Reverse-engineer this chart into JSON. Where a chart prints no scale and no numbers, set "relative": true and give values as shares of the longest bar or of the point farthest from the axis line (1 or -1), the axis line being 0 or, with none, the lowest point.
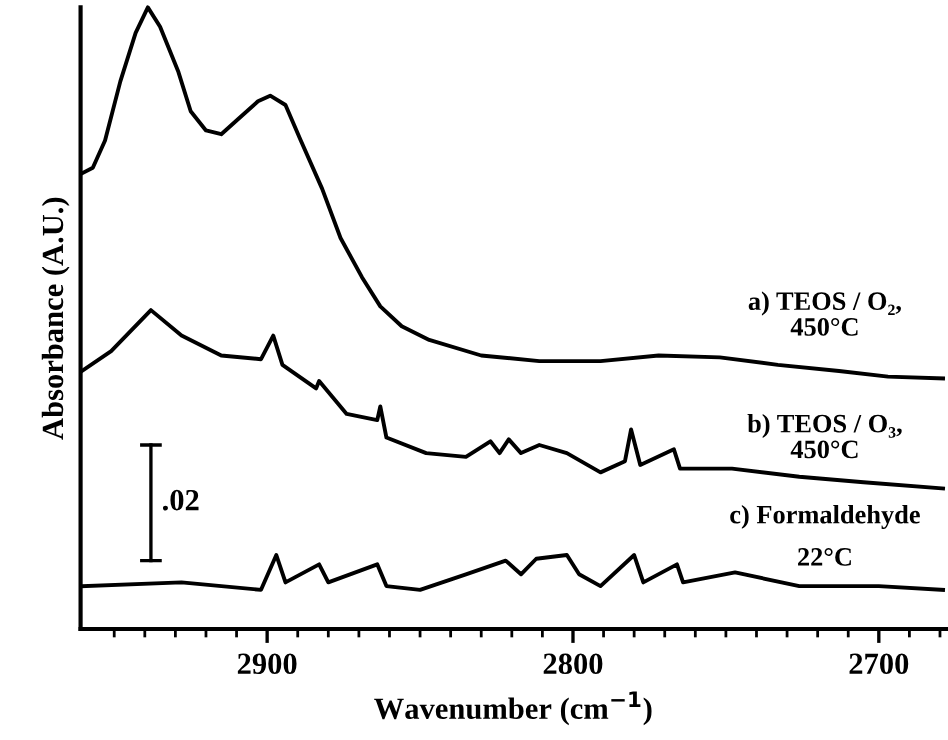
{
  "chart_data": {
    "type": "line",
    "relative": true,
    "xlabel": "Wavenumber (cm$^{−1}$)",
    "ylabel": "Absorbance (A.U.)",
    "xlim": [
      2961,
      2678
    ],
    "xticks": [
      {
        "value": 2950,
        "label": null
      },
      {
        "value": 2940,
        "label": null
      },
      {
        "value": 2930,
        "label": null
      },
      {
        "value": 2920,
        "label": null
      },
      {
        "value": 2910,
        "label": null
      },
      2900,
      {
        "value": 2890,
        "label": null
      },
      {
        "value": 2880,
        "label": null
      },
      {
        "value": 2870,
        "label": null
      },
      {
        "value": 2860,
        "label": null
      },
      {
        "value": 2850,
        "label": null
      },
      {
        "value": 2840,
        "label": null
      },
      {
        "value": 2830,
        "label": null
      },
      {
        "value": 2820,
        "label": null
      },
      {
        "value": 2810,
        "label": null
      },
      2800,
      {
        "value": 2790,
        "label": null
      },
      {
        "value": 2780,
        "label": null
      },
      {
        "value": 2770,
        "label": null
      },
      {
        "value": 2760,
        "label": null
      },
      {
        "value": 2750,
        "label": null
      },
      {
        "value": 2740,
        "label": null
      },
      {
        "value": 2730,
        "label": null
      },
      {
        "value": 2720,
        "label": null
      },
      {
        "value": 2710,
        "label": null
      },
      2700,
      {
        "value": 2690,
        "label": null
      },
      {
        "value": 2680,
        "label": null
      }
    ],
    "grid": false,
    "legend": false,
    "marker": "none",
    "line_style": "solid",
    "annotations": [
      ".02"
    ],
    "series": [
      {
        "name": "a) TEOS / O₂,\n450°C",
        "color": "#000000",
        "x": [
          2960.6,
          2957,
          2953,
          2948,
          2943,
          2939,
          2935,
          2929,
          2925,
          2920,
          2915,
          2910,
          2903,
          2899,
          2894,
          2889,
          2882,
          2876,
          2869,
          2863,
          2856,
          2847,
          2830,
          2811,
          2791,
          2772,
          2752,
          2733,
          2713,
          2697,
          2679
        ],
        "values": [
          0.733,
          0.742,
          0.786,
          0.881,
          0.959,
          1.0,
          0.969,
          0.896,
          0.833,
          0.802,
          0.796,
          0.818,
          0.849,
          0.858,
          0.843,
          0.786,
          0.708,
          0.629,
          0.566,
          0.519,
          0.487,
          0.465,
          0.44,
          0.431,
          0.431,
          0.44,
          0.437,
          0.425,
          0.415,
          0.406,
          0.403
        ]
      },
      {
        "name": "b) TEOS / O₃,\n450°C",
        "color": "#000000",
        "x": [
          2960.6,
          2951,
          2938,
          2928,
          2915,
          2902,
          2898,
          2895,
          2884,
          2883,
          2874,
          2864,
          2863,
          2861,
          2848,
          2835,
          2827,
          2824,
          2821,
          2817,
          2811,
          2802,
          2791,
          2783,
          2781,
          2778,
          2767,
          2765,
          2748,
          2726,
          2705,
          2679
        ],
        "values": [
          0.415,
          0.447,
          0.513,
          0.472,
          0.44,
          0.434,
          0.472,
          0.425,
          0.387,
          0.399,
          0.346,
          0.336,
          0.358,
          0.308,
          0.283,
          0.277,
          0.302,
          0.283,
          0.305,
          0.283,
          0.296,
          0.283,
          0.252,
          0.27,
          0.321,
          0.264,
          0.289,
          0.258,
          0.258,
          0.245,
          0.236,
          0.226
        ]
      },
      {
        "name": "c) Formaldehyde\n22°C",
        "color": "#000000",
        "x": [
          2960.6,
          2928,
          2902,
          2897,
          2894,
          2883,
          2880,
          2864,
          2861,
          2850,
          2835,
          2822,
          2817,
          2812,
          2802,
          2798,
          2791,
          2780,
          2777,
          2766,
          2764,
          2747,
          2726,
          2700,
          2679
        ],
        "values": [
          0.069,
          0.075,
          0.063,
          0.119,
          0.075,
          0.104,
          0.075,
          0.104,
          0.069,
          0.063,
          0.088,
          0.11,
          0.088,
          0.113,
          0.119,
          0.088,
          0.069,
          0.119,
          0.075,
          0.104,
          0.075,
          0.091,
          0.069,
          0.069,
          0.063
        ]
      }
    ]
  }
}
